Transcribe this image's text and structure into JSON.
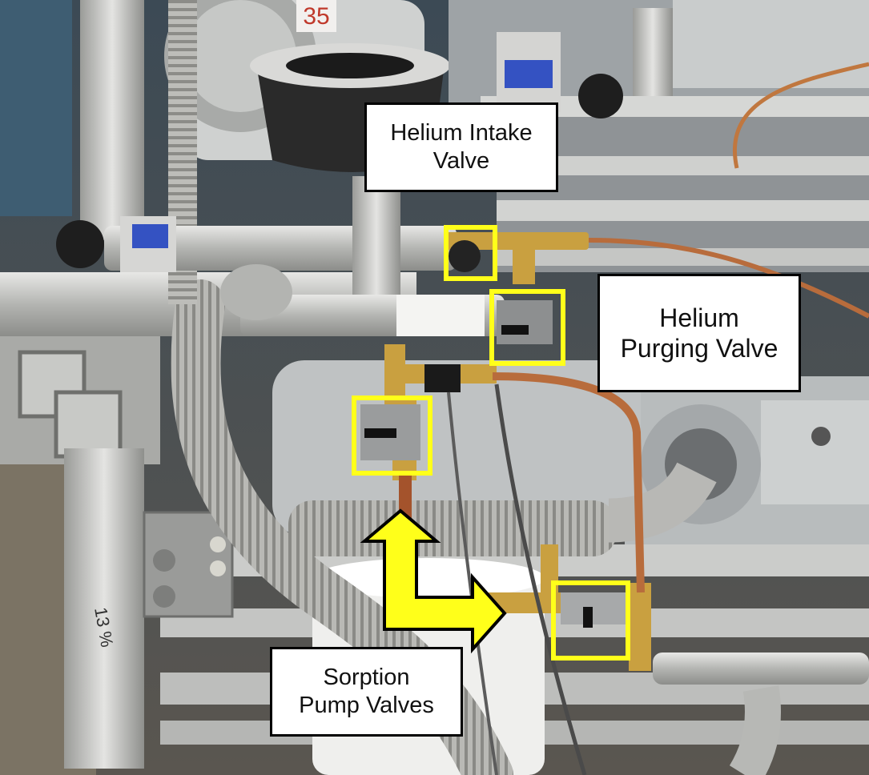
{
  "labels": {
    "helium_intake": [
      "Helium Intake",
      "Valve"
    ],
    "helium_purging": [
      "Helium",
      "Purging Valve"
    ],
    "sorption": [
      "Sorption",
      "Pump Valves"
    ]
  },
  "stamp_text": "35",
  "marking_text": "13 %",
  "colors": {
    "highlight": "#ffff1a",
    "arrow": "#ffff1a",
    "label_border": "#000000",
    "label_fill": "#ffffff"
  }
}
